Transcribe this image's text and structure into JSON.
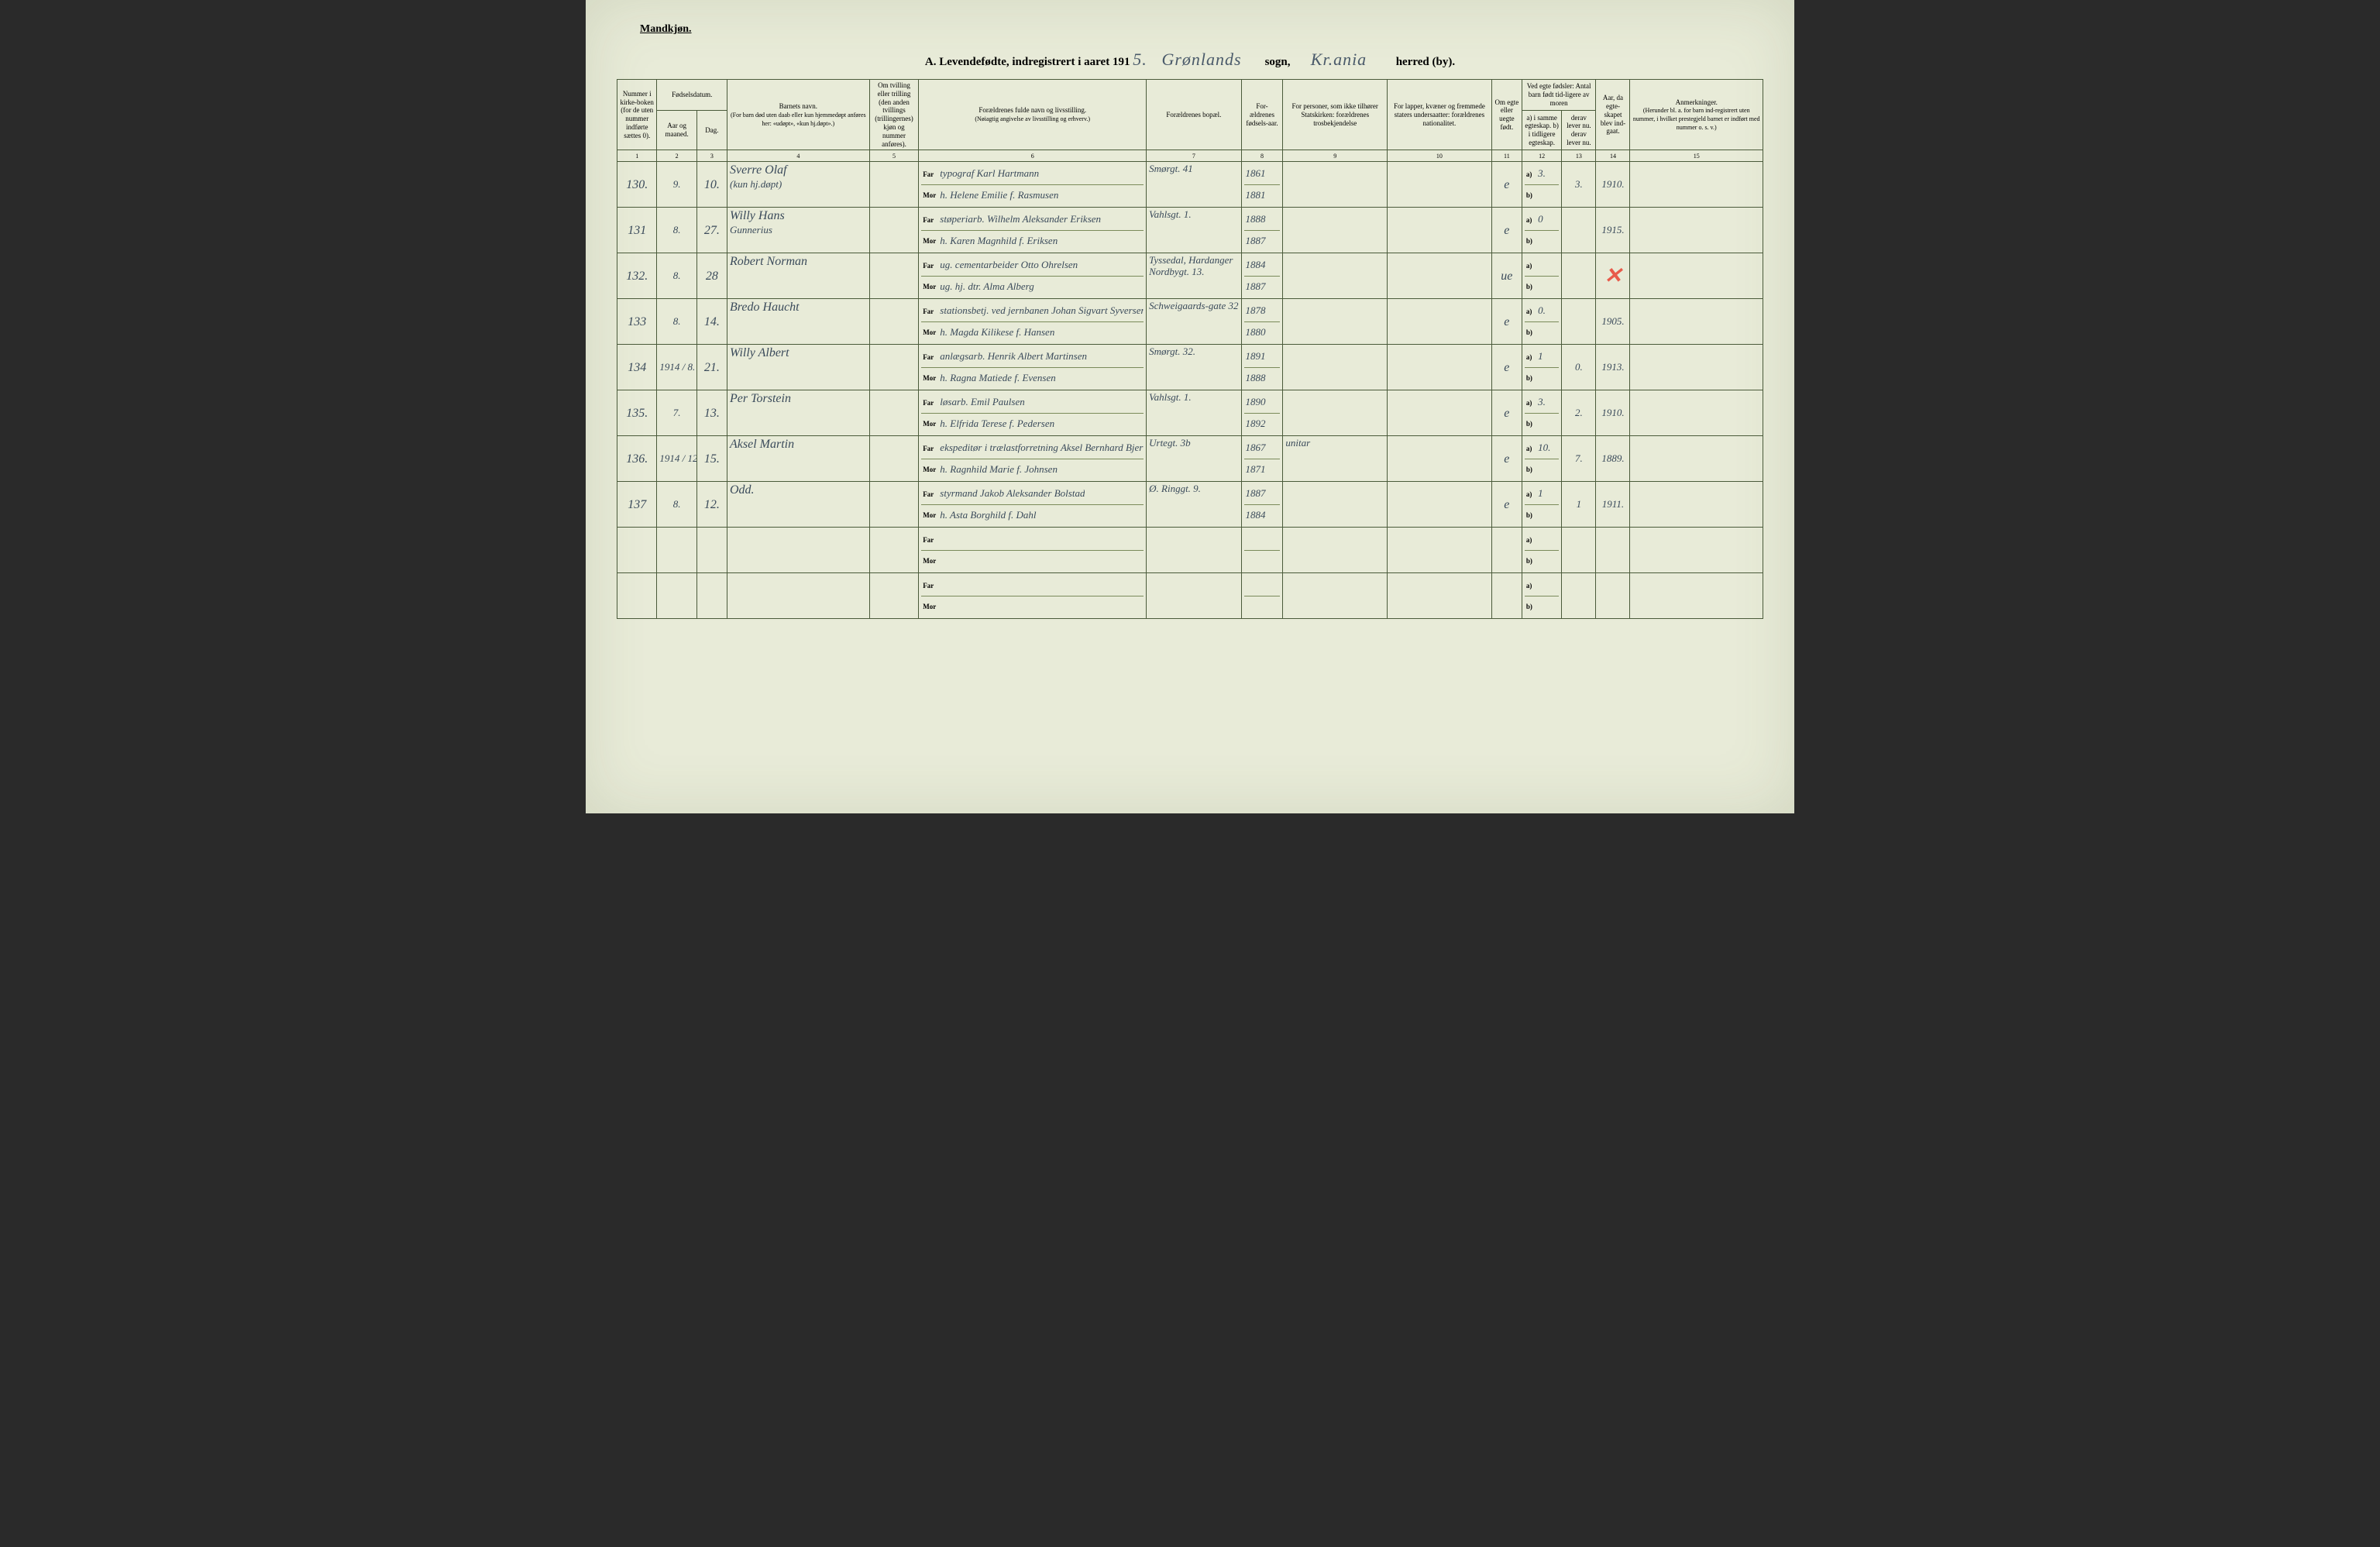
{
  "header_gender": "Mandkjøn.",
  "title": {
    "prefix": "A.  Levendefødte, indregistrert i aaret 191",
    "year_suffix": "5.",
    "sogn_script": "Grønlands",
    "sogn_label": "sogn,",
    "herred_script": "Kr.ania",
    "herred_label": "herred (by)."
  },
  "columns": {
    "c1": "Nummer i kirke-boken (for de uten nummer indførte sættes 0).",
    "c2_3": "Fødselsdatum.",
    "c2": "Aar og maaned.",
    "c3": "Dag.",
    "c4": "Barnets navn.",
    "c4_sub": "(For barn død uten daab eller kun hjemmedøpt anføres her: «udøpt», «kun hj.døpt».)",
    "c5": "Om tvilling eller trilling (den anden tvillings (trillingernes) kjøn og nummer anføres).",
    "c6": "Forældrenes fulde navn og livsstilling.",
    "c6_sub": "(Nøiagtig angivelse av livsstilling og erhverv.)",
    "c7": "Forældrenes bopæl.",
    "c8": "For-ældrenes fødsels-aar.",
    "c9": "For personer, som ikke tilhører Statskirken: forældrenes trosbekjendelse",
    "c10": "For lapper, kvæner og fremmede staters undersaatter: forældrenes nationalitet.",
    "c11": "Om egte eller uegte født.",
    "c12_13": "Ved egte fødsler: Antal barn født tid-ligere av moren",
    "c12": "a) i samme egteskap. b) i tidligere egteskap.",
    "c13": "derav lever nu. derav lever nu.",
    "c14": "Aar, da egte-skapet blev ind-gaat.",
    "c15": "Anmerkninger.",
    "c15_sub": "(Herunder bl. a. for barn ind-registrert uten nummer, i hvilket prestegjeld barnet er indført med nummer o. s. v.)"
  },
  "colnums": [
    "1",
    "2",
    "3",
    "4",
    "5",
    "6",
    "7",
    "8",
    "9",
    "10",
    "11",
    "12",
    "13",
    "14",
    "15"
  ],
  "rows": [
    {
      "mark": "check",
      "num": "130.",
      "mnd": "9.",
      "dag": "10.",
      "barn": "Sverre Olaf",
      "barn2": "(kun hj.døpt)",
      "far": "typograf Karl Hartmann",
      "mor": "h. Helene Emilie f. Rasmusen",
      "bopel": "Smørgt. 41",
      "far_aar": "1861",
      "mor_aar": "1881",
      "egte": "e",
      "a": "3.",
      "a2": "3.",
      "aar": "1910."
    },
    {
      "num": "131",
      "mnd": "8.",
      "dag": "27.",
      "barn": "Willy Hans",
      "barn2": "Gunnerius",
      "far": "støperiarb. Wilhelm Aleksander Eriksen",
      "mor": "h. Karen Magnhild f. Eriksen",
      "bopel": "Vahlsgt. 1.",
      "far_aar": "1888",
      "mor_aar": "1887",
      "egte": "e",
      "a": "0",
      "a2": "",
      "aar": "1915."
    },
    {
      "mark": "redx",
      "num": "132.",
      "mnd": "8.",
      "dag": "28",
      "barn": "Robert Norman",
      "barn2": "",
      "far": "ug. cementarbeider Otto Ohrelsen",
      "mor": "ug. hj. dtr. Alma Alberg",
      "bopel": "Tyssedal, Hardanger",
      "bopel2": "Nordbygt. 13.",
      "far_aar": "1884",
      "mor_aar": "1887",
      "egte": "ue",
      "a": "",
      "a2": "",
      "aar": "",
      "redx_col14": true
    },
    {
      "num": "133",
      "mnd": "8.",
      "dag": "14.",
      "barn": "Bredo Haucht",
      "barn2": "",
      "far": "stationsbetj. ved jernbanen Johan Sigvart Syversen",
      "mor": "h. Magda Kilikese f. Hansen",
      "bopel": "Schweigaards-gate 32",
      "far_aar": "1878",
      "mor_aar": "1880",
      "egte": "e",
      "a": "0.",
      "a2": "",
      "aar": "1905."
    },
    {
      "num": "134",
      "mnd": "1914 / 8.",
      "dag": "21.",
      "barn": "Willy Albert",
      "barn2": "",
      "far": "anlægsarb. Henrik Albert Martinsen",
      "mor": "h. Ragna Matiede f. Evensen",
      "bopel": "Smørgt. 32.",
      "far_aar": "1891",
      "mor_aar": "1888",
      "egte": "e",
      "a": "1",
      "a2": "0.",
      "aar": "1913."
    },
    {
      "num": "135.",
      "mnd": "7.",
      "dag": "13.",
      "barn": "Per Torstein",
      "barn2": "",
      "far": "løsarb. Emil Paulsen",
      "mor": "h. Elfrida Terese f. Pedersen",
      "bopel": "Vahlsgt. 1.",
      "far_aar": "1890",
      "mor_aar": "1892",
      "egte": "e",
      "a": "3.",
      "a2": "2.",
      "aar": "1910."
    },
    {
      "num": "136.",
      "mnd": "1914 / 12.",
      "dag": "15.",
      "barn": "Aksel Martin",
      "barn2": "",
      "far": "ekspeditør i trælastforretning Aksel Bernhard Bjervik",
      "mor": "h. Ragnhild Marie f. Johnsen",
      "bopel": "Urtegt. 3b",
      "far_aar": "1867",
      "mor_aar": "1871",
      "trosb": "unitar",
      "egte": "e",
      "a": "10.",
      "a2": "7.",
      "aar": "1889."
    },
    {
      "num": "137",
      "mnd": "8.",
      "dag": "12.",
      "barn": "Odd.",
      "barn2": "",
      "far": "styrmand Jakob Aleksander Bolstad",
      "mor": "h. Asta Borghild f. Dahl",
      "bopel": "Ø. Ringgt. 9.",
      "far_aar": "1887",
      "mor_aar": "1884",
      "egte": "e",
      "a": "1",
      "a2": "1",
      "aar": "1911."
    },
    {
      "empty": true
    },
    {
      "empty": true
    }
  ],
  "labels": {
    "far": "Far",
    "mor": "Mor",
    "a": "a)",
    "b": "b)"
  }
}
